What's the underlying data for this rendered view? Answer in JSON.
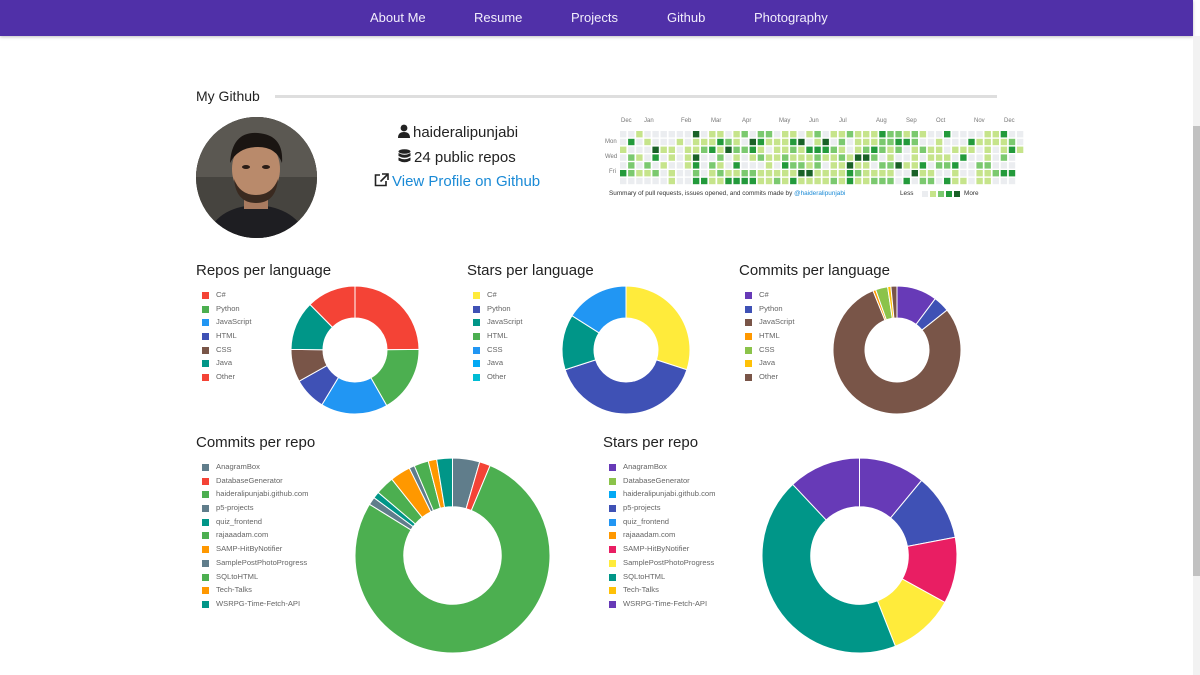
{
  "nav": {
    "items": [
      "About Me",
      "Resume",
      "Projects",
      "Github",
      "Photography"
    ]
  },
  "section": {
    "title": "My Github"
  },
  "profile": {
    "username": "haideralipunjabi",
    "repos_text": "24 public repos",
    "link_text": "View Profile on Github",
    "icons": [
      "user-icon",
      "database-icon",
      "external-link-icon"
    ]
  },
  "contributions": {
    "months": [
      "Dec",
      "Jan",
      "Feb",
      "Mar",
      "Apr",
      "May",
      "Jun",
      "Jul",
      "Aug",
      "Sep",
      "Oct",
      "Nov",
      "Dec"
    ],
    "day_labels": [
      "Mon",
      "Wed",
      "Fri"
    ],
    "summary_prefix": "Summary of pull requests, issues opened, and commits made by",
    "summary_link": "@haideralipunjabi",
    "legend_less": "Less",
    "legend_more": "More",
    "colors": [
      "#ebedf0",
      "#c6e48b",
      "#7bc96f",
      "#239a3b",
      "#196127"
    ]
  },
  "palette": {
    "red": "#f44336",
    "green": "#4caf50",
    "blue": "#2196f3",
    "indigo": "#3f51b5",
    "brown": "#795548",
    "teal": "#009688",
    "yellow": "#ffeb3b",
    "cyan": "#00bcd4",
    "purple": "#673ab7",
    "lightgreen": "#8bc34a",
    "orange": "#ff9800",
    "bluegrey": "#607d8b",
    "amber": "#ffc107",
    "pink": "#e91e63",
    "lightblue": "#03a9f4"
  },
  "charts": {
    "repos": {
      "title": "Repos per language",
      "legend": [
        "C#",
        "Python",
        "JavaScript",
        "HTML",
        "CSS",
        "Java",
        "Other"
      ],
      "legend_colors": [
        "#f44336",
        "#4caf50",
        "#2196f3",
        "#3f51b5",
        "#795548",
        "#009688",
        "#f44336"
      ]
    },
    "stars": {
      "title": "Stars per language",
      "legend": [
        "C#",
        "Python",
        "JavaScript",
        "HTML",
        "CSS",
        "Java",
        "Other"
      ],
      "legend_colors": [
        "#ffeb3b",
        "#3f51b5",
        "#009688",
        "#4caf50",
        "#2196f3",
        "#03a9f4",
        "#00bcd4"
      ]
    },
    "commits_lang": {
      "title": "Commits per language",
      "legend": [
        "C#",
        "Python",
        "JavaScript",
        "HTML",
        "CSS",
        "Java",
        "Other"
      ],
      "legend_colors": [
        "#673ab7",
        "#3f51b5",
        "#795548",
        "#ff9800",
        "#8bc34a",
        "#ffc107",
        "#795548"
      ]
    },
    "commits_repo": {
      "title": "Commits per repo",
      "legend": [
        "AnagramBox",
        "DatabaseGenerator",
        "haideralipunjabi.github.com",
        "p5-projects",
        "quiz_frontend",
        "rajaaadam.com",
        "SAMP-HitByNotifier",
        "SamplePostPhotoProgress",
        "SQLtoHTML",
        "Tech-Talks",
        "WSRPG-Time-Fetch-API"
      ],
      "legend_colors": [
        "#607d8b",
        "#f44336",
        "#4caf50",
        "#607d8b",
        "#009688",
        "#4caf50",
        "#ff9800",
        "#607d8b",
        "#4caf50",
        "#ff9800",
        "#009688"
      ]
    },
    "stars_repo": {
      "title": "Stars per repo",
      "legend": [
        "AnagramBox",
        "DatabaseGenerator",
        "haideralipunjabi.github.com",
        "p5-projects",
        "quiz_frontend",
        "rajaaadam.com",
        "SAMP-HitByNotifier",
        "SamplePostPhotoProgress",
        "SQLtoHTML",
        "Tech-Talks",
        "WSRPG-Time-Fetch-API"
      ],
      "legend_colors": [
        "#673ab7",
        "#8bc34a",
        "#03a9f4",
        "#3f51b5",
        "#2196f3",
        "#ff9800",
        "#e91e63",
        "#ffeb3b",
        "#009688",
        "#ffc107",
        "#673ab7"
      ]
    }
  },
  "chart_data": [
    {
      "type": "pie",
      "title": "Repos per language",
      "labels": [
        "C#",
        "Python",
        "JavaScript",
        "HTML",
        "CSS",
        "Java",
        "Other"
      ],
      "values": [
        25,
        17,
        17,
        8.3,
        8.3,
        12.5,
        12.5
      ],
      "colors": [
        "#f44336",
        "#4caf50",
        "#2196f3",
        "#3f51b5",
        "#795548",
        "#009688",
        "#f44336"
      ]
    },
    {
      "type": "pie",
      "title": "Stars per language",
      "labels": [
        "C#",
        "Python",
        "JavaScript",
        "CSS"
      ],
      "values": [
        30,
        40,
        14,
        16
      ],
      "colors": [
        "#ffeb3b",
        "#3f51b5",
        "#009688",
        "#2196f3"
      ]
    },
    {
      "type": "pie",
      "title": "Commits per language",
      "labels": [
        "C#",
        "Python",
        "JavaScript",
        "HTML",
        "CSS",
        "Java",
        "Other"
      ],
      "values": [
        10,
        4,
        78,
        0.7,
        3,
        0.8,
        1.5
      ],
      "colors": [
        "#673ab7",
        "#3f51b5",
        "#795548",
        "#ff9800",
        "#8bc34a",
        "#ffc107",
        "#795548"
      ]
    },
    {
      "type": "pie",
      "title": "Commits per repo",
      "labels": [
        "AnagramBox",
        "DatabaseGenerator",
        "haideralipunjabi.github.com",
        "p5-projects",
        "quiz_frontend",
        "rajaaadam.com",
        "SAMP-HitByNotifier",
        "SamplePostPhotoProgress",
        "SQLtoHTML",
        "Tech-Talks",
        "WSRPG-Time-Fetch-API"
      ],
      "values": [
        4.5,
        1.8,
        77.5,
        1.3,
        1.1,
        3.1,
        3.4,
        0.9,
        2.4,
        1.4,
        2.6
      ],
      "colors": [
        "#607d8b",
        "#f44336",
        "#4caf50",
        "#607d8b",
        "#009688",
        "#4caf50",
        "#ff9800",
        "#607d8b",
        "#4caf50",
        "#ff9800",
        "#009688"
      ]
    },
    {
      "type": "pie",
      "title": "Stars per repo",
      "labels": [
        "AnagramBox",
        "p5-projects",
        "SAMP-HitByNotifier",
        "SamplePostPhotoProgress",
        "SQLtoHTML",
        "WSRPG-Time-Fetch-API"
      ],
      "values": [
        11,
        11,
        11,
        11,
        44,
        12
      ],
      "colors": [
        "#673ab7",
        "#3f51b5",
        "#e91e63",
        "#ffeb3b",
        "#009688",
        "#673ab7"
      ]
    }
  ]
}
